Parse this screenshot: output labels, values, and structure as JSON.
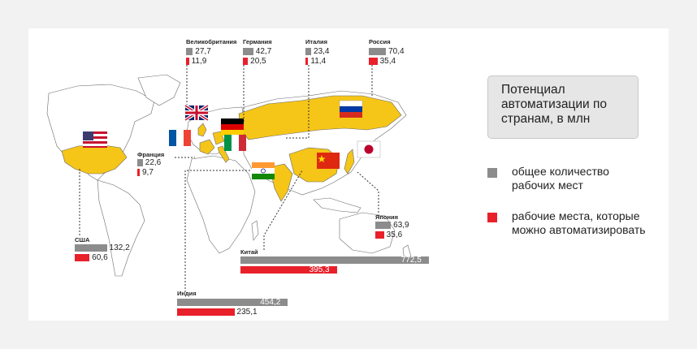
{
  "title": "Потенциал автоматизации по странам, в млн",
  "legend": [
    {
      "label": "общее количество рабочих мест",
      "color": "#8c8c8c"
    },
    {
      "label": "рабочие места, которые можно автоматизировать",
      "color": "#e8202a"
    }
  ],
  "colors": {
    "total": "#8c8c8c",
    "automatable": "#e8202a",
    "highlight_country": "#f5c518",
    "land": "#ffffff",
    "border": "#6b6b6b"
  },
  "chart_data": {
    "type": "bar",
    "categories": [
      "Великобритания",
      "Германия",
      "Италия",
      "Россия",
      "Франция",
      "Япония",
      "США",
      "Китай",
      "Индия"
    ],
    "series": [
      {
        "name": "общее количество рабочих мест",
        "values": [
          27.7,
          42.7,
          23.4,
          70.4,
          22.6,
          63.9,
          132.2,
          772.5,
          454.2
        ]
      },
      {
        "name": "рабочие места, которые можно автоматизировать",
        "values": [
          11.9,
          20.5,
          11.4,
          35.4,
          9.7,
          35.6,
          60.6,
          395.3,
          235.1
        ]
      }
    ],
    "labels_total": [
      "27,7",
      "42,7",
      "23,4",
      "70,4",
      "22,6",
      "63,9",
      "132,2",
      "772,5",
      "454,2"
    ],
    "labels_auto": [
      "11,9",
      "20,5",
      "11,4",
      "35,4",
      "9,7",
      "35,6",
      "60,6",
      "395,3",
      "235,1"
    ]
  }
}
